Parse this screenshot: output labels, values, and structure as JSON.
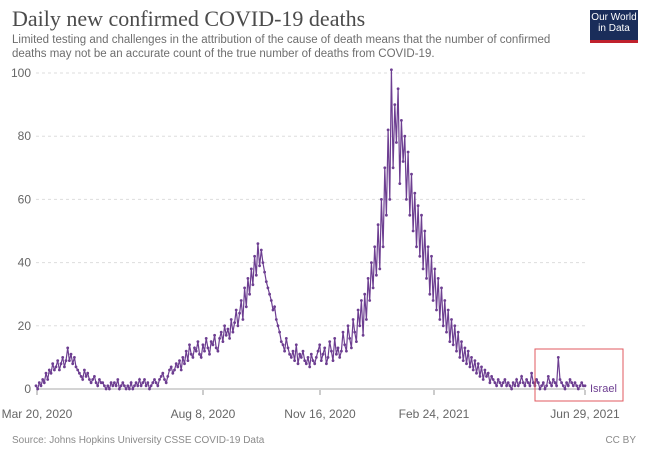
{
  "header": {
    "title": "Daily new confirmed COVID-19 deaths",
    "subtitle": "Limited testing and challenges in the attribution of the cause of death means that the number of confirmed deaths may not be an accurate count of the true number of deaths from COVID-19.",
    "logo_line1": "Our World",
    "logo_line2": "in Data"
  },
  "footer": {
    "source": "Source: Johns Hopkins University CSSE COVID-19 Data",
    "license": "CC BY"
  },
  "colors": {
    "series": "#6d3e91",
    "grid": "#dddddd",
    "highlight_box": "#e0585f",
    "logo_bg": "#1a2d5a",
    "logo_accent": "#c0212d"
  },
  "chart_data": {
    "type": "line",
    "title": "Daily new confirmed COVID-19 deaths",
    "ylim": [
      0,
      100
    ],
    "yticks": [
      0,
      20,
      40,
      60,
      80,
      100
    ],
    "xtick_labels": [
      "Mar 20, 2020",
      "Aug 8, 2020",
      "Nov 16, 2020",
      "Feb 24, 2021",
      "Jun 29, 2021"
    ],
    "grid": true,
    "series": [
      {
        "name": "Israel",
        "x_start": "Mar 20, 2020",
        "x_end": "Jun 29, 2021",
        "values": [
          1,
          0,
          2,
          1,
          3,
          2,
          5,
          3,
          6,
          5,
          8,
          6,
          7,
          9,
          6,
          8,
          10,
          7,
          9,
          13,
          9,
          11,
          8,
          10,
          7,
          6,
          5,
          4,
          3,
          6,
          4,
          5,
          3,
          2,
          3,
          4,
          2,
          1,
          3,
          2,
          2,
          1,
          0,
          1,
          0,
          2,
          1,
          2,
          1,
          3,
          0,
          1,
          2,
          1,
          0,
          1,
          0,
          2,
          0,
          1,
          2,
          1,
          3,
          1,
          2,
          3,
          1,
          2,
          0,
          1,
          2,
          3,
          2,
          1,
          3,
          4,
          5,
          3,
          2,
          4,
          6,
          7,
          5,
          6,
          8,
          7,
          9,
          6,
          10,
          8,
          12,
          9,
          14,
          11,
          10,
          13,
          12,
          15,
          11,
          10,
          14,
          12,
          16,
          13,
          11,
          15,
          14,
          17,
          13,
          12,
          16,
          18,
          15,
          20,
          17,
          19,
          16,
          22,
          18,
          21,
          25,
          20,
          24,
          28,
          22,
          32,
          26,
          35,
          30,
          38,
          33,
          42,
          36,
          46,
          39,
          44,
          40,
          37,
          34,
          32,
          30,
          28,
          25,
          26,
          22,
          20,
          18,
          15,
          14,
          12,
          16,
          13,
          11,
          10,
          12,
          9,
          14,
          8,
          11,
          10,
          12,
          9,
          8,
          10,
          7,
          11,
          9,
          8,
          10,
          12,
          14,
          9,
          11,
          13,
          8,
          10,
          15,
          12,
          9,
          16,
          11,
          13,
          10,
          12,
          18,
          14,
          12,
          20,
          16,
          13,
          22,
          18,
          15,
          25,
          20,
          28,
          17,
          30,
          22,
          35,
          28,
          40,
          32,
          45,
          36,
          52,
          38,
          60,
          45,
          70,
          55,
          82,
          60,
          101,
          70,
          90,
          78,
          95,
          65,
          85,
          72,
          80,
          60,
          75,
          55,
          68,
          50,
          62,
          45,
          58,
          42,
          55,
          38,
          50,
          35,
          45,
          30,
          42,
          28,
          38,
          25,
          35,
          22,
          32,
          20,
          28,
          18,
          25,
          15,
          22,
          14,
          20,
          12,
          18,
          10,
          15,
          9,
          13,
          8,
          12,
          7,
          10,
          6,
          9,
          5,
          8,
          4,
          7,
          3,
          6,
          4,
          5,
          2,
          4,
          3,
          2,
          1,
          3,
          2,
          1,
          2,
          3,
          1,
          2,
          1,
          0,
          2,
          1,
          3,
          1,
          2,
          4,
          2,
          1,
          3,
          2,
          1,
          5,
          2,
          1,
          3,
          2,
          0,
          1,
          2,
          0,
          1,
          4,
          2,
          1,
          3,
          2,
          1,
          10,
          3,
          2,
          1,
          0,
          2,
          1,
          3,
          2,
          1,
          2,
          1,
          0,
          1,
          2,
          1,
          1
        ]
      }
    ]
  }
}
